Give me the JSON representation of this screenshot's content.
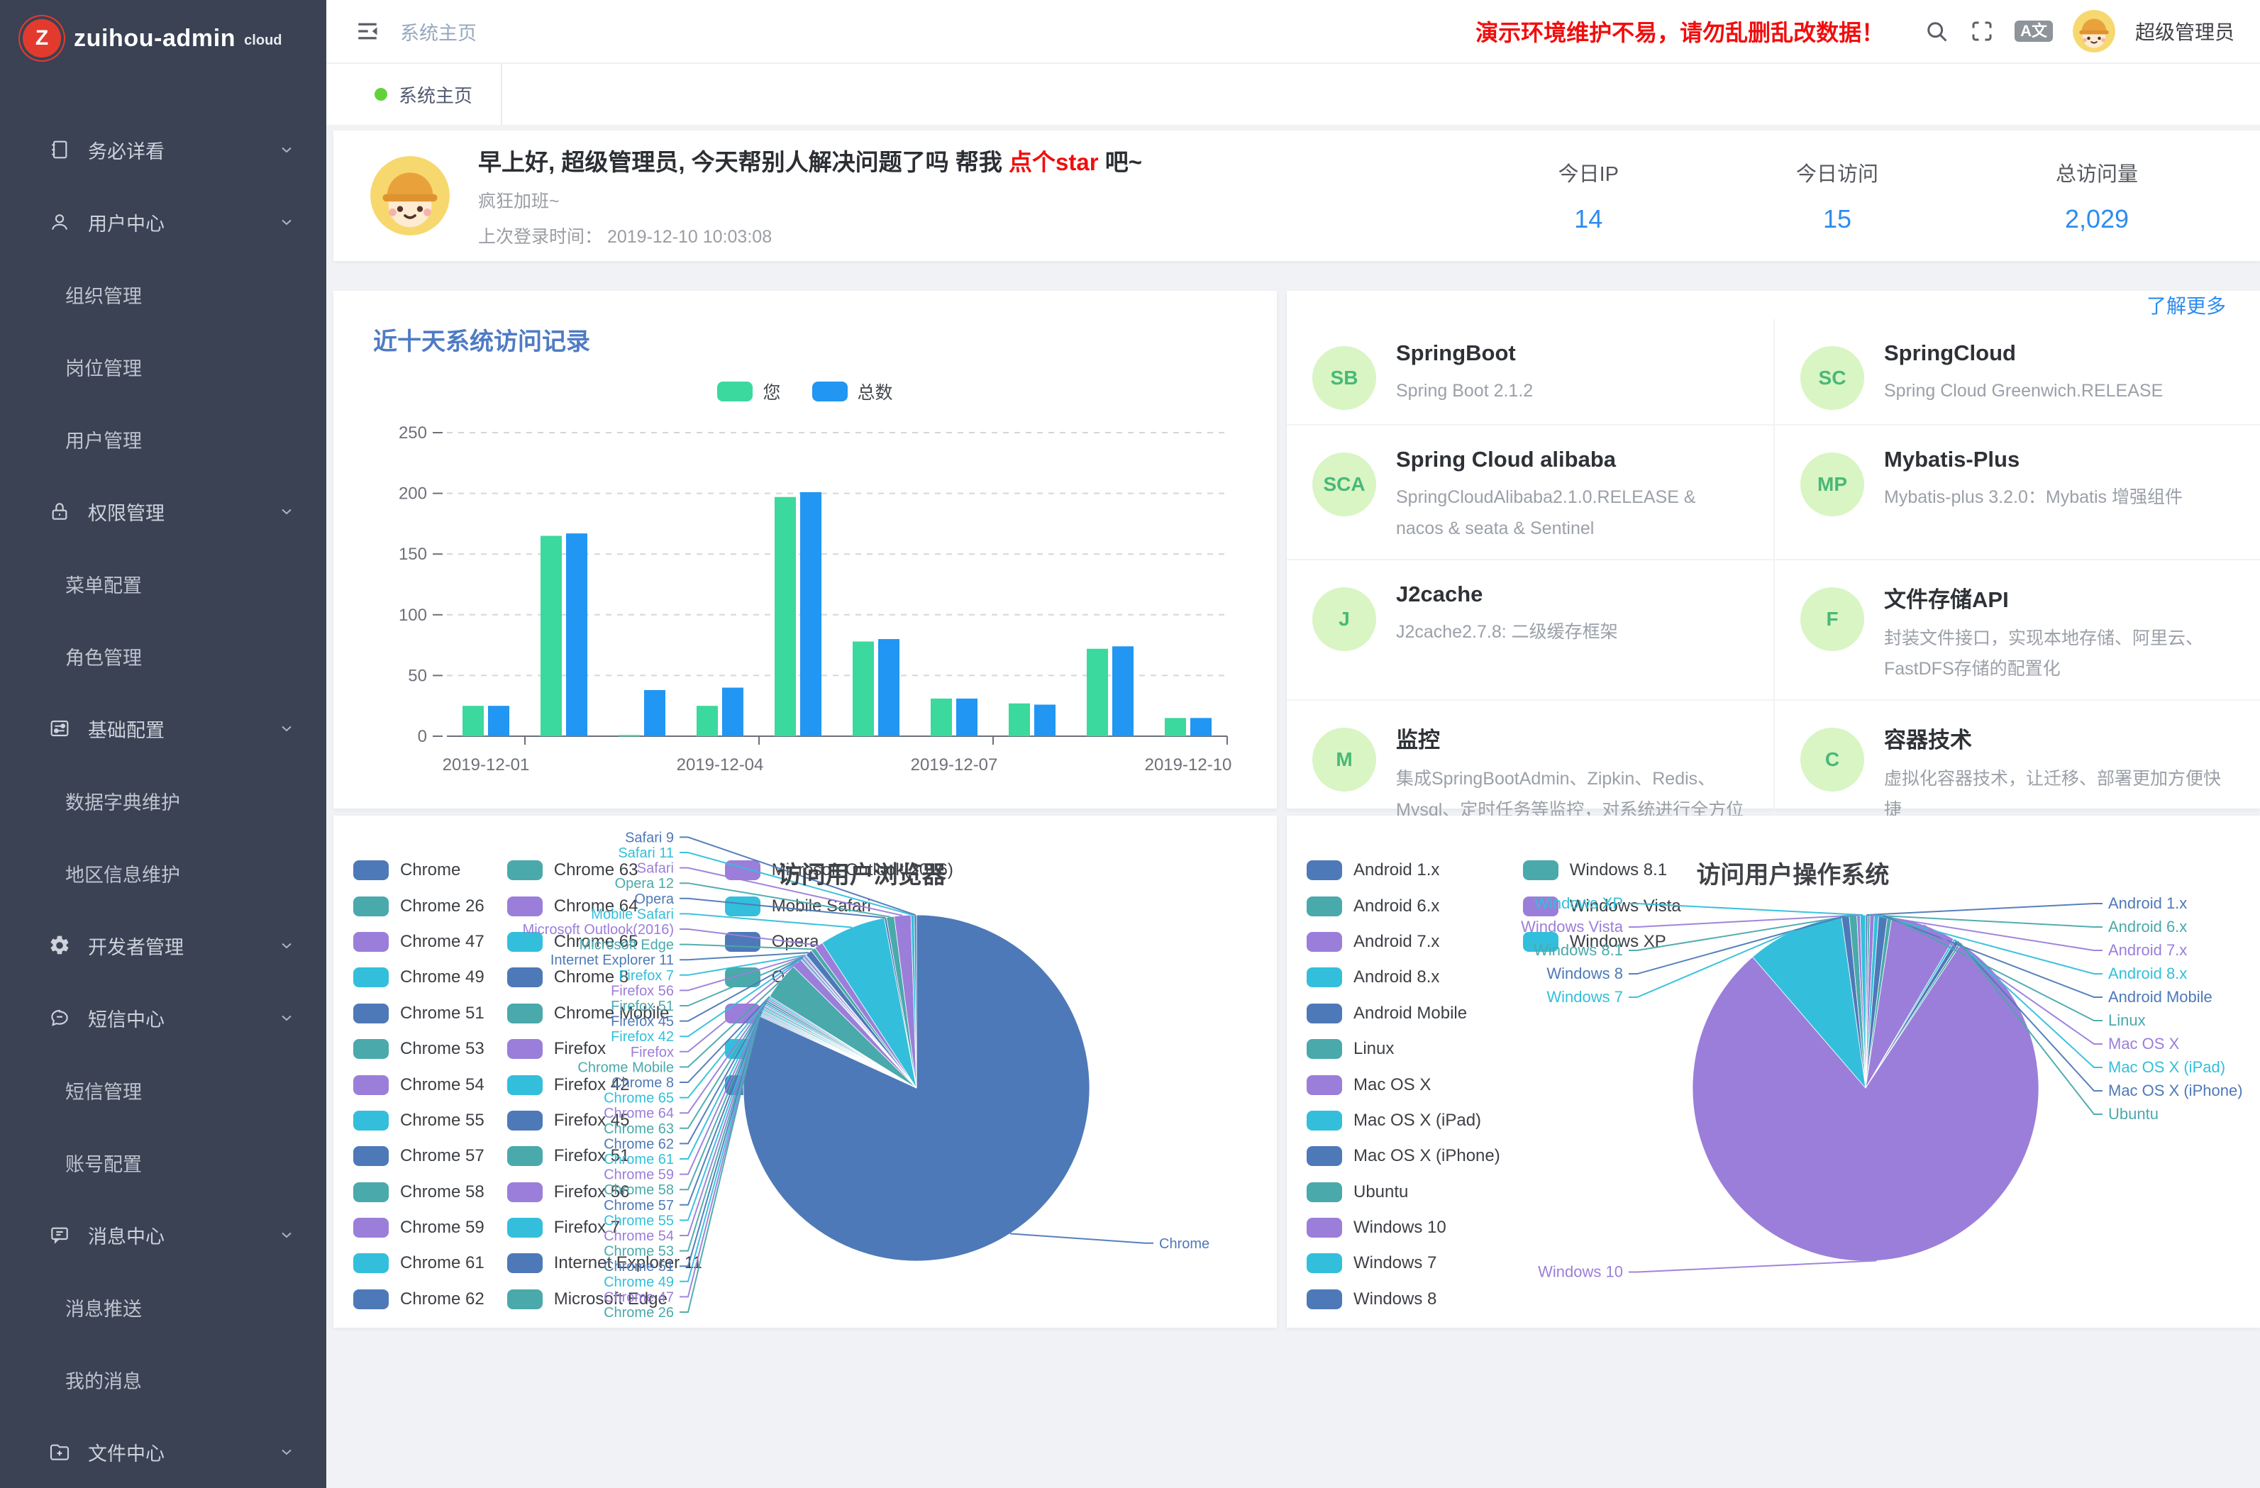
{
  "app": {
    "logo_text": "zuihou-admin",
    "logo_badge": "cloud",
    "logo_letter": "Z"
  },
  "header": {
    "breadcrumb": "系统主页",
    "warning": "演示环境维护不易，请勿乱删乱改数据！",
    "lang_icon": "A文",
    "username": "超级管理员"
  },
  "tabbar": {
    "active_tab": "系统主页"
  },
  "sidebar": {
    "items": [
      {
        "label": "务必详看",
        "icon": "book",
        "level": 1,
        "chevron": true
      },
      {
        "label": "用户中心",
        "icon": "user",
        "level": 1,
        "chevron": true
      },
      {
        "label": "组织管理",
        "level": 2
      },
      {
        "label": "岗位管理",
        "level": 2
      },
      {
        "label": "用户管理",
        "level": 2
      },
      {
        "label": "权限管理",
        "icon": "lock",
        "level": 1,
        "chevron": true
      },
      {
        "label": "菜单配置",
        "level": 2
      },
      {
        "label": "角色管理",
        "level": 2
      },
      {
        "label": "基础配置",
        "icon": "sliders",
        "level": 1,
        "chevron": true
      },
      {
        "label": "数据字典维护",
        "level": 2
      },
      {
        "label": "地区信息维护",
        "level": 2
      },
      {
        "label": "开发者管理",
        "icon": "gear",
        "level": 1,
        "chevron": true
      },
      {
        "label": "短信中心",
        "icon": "chat-round",
        "level": 1,
        "chevron": true
      },
      {
        "label": "短信管理",
        "level": 2
      },
      {
        "label": "账号配置",
        "level": 2
      },
      {
        "label": "消息中心",
        "icon": "chat-square",
        "level": 1,
        "chevron": true
      },
      {
        "label": "消息推送",
        "level": 2
      },
      {
        "label": "我的消息",
        "level": 2
      },
      {
        "label": "文件中心",
        "icon": "folder-plus",
        "level": 1,
        "chevron": true
      }
    ]
  },
  "greeting": {
    "title_pre": "早上好, 超级管理员, 今天帮别人解决问题了吗 帮我 ",
    "star_link": "点个star",
    "title_post": " 吧~",
    "subtitle": "疯狂加班~",
    "last_login_label": "上次登录时间：  ",
    "last_login_time": "2019-12-10 10:03:08"
  },
  "stats": [
    {
      "label": "今日IP",
      "value": "14"
    },
    {
      "label": "今日访问",
      "value": "15"
    },
    {
      "label": "总访问量",
      "value": "2,029"
    }
  ],
  "tech": {
    "more_link": "了解更多",
    "cards": [
      {
        "abbr": "SB",
        "title": "SpringBoot",
        "desc": "Spring Boot 2.1.2"
      },
      {
        "abbr": "SC",
        "title": "SpringCloud",
        "desc": "Spring Cloud Greenwich.RELEASE"
      },
      {
        "abbr": "SCA",
        "title": "Spring Cloud alibaba",
        "desc": "SpringCloudAlibaba2.1.0.RELEASE & nacos & seata & Sentinel"
      },
      {
        "abbr": "MP",
        "title": "Mybatis-Plus",
        "desc": "Mybatis-plus 3.2.0：Mybatis 增强组件"
      },
      {
        "abbr": "J",
        "title": "J2cache",
        "desc": "J2cache2.7.8: 二级缓存框架"
      },
      {
        "abbr": "F",
        "title": "文件存储API",
        "desc": "封装文件接口，实现本地存储、阿里云、FastDFS存储的配置化"
      },
      {
        "abbr": "M",
        "title": "监控",
        "desc": "集成SpringBootAdmin、Zipkin、Redis、Mysql、定时任务等监控，对系统进行全方位监控护航"
      },
      {
        "abbr": "C",
        "title": "容器技术",
        "desc": "虚拟化容器技术，让迁移、部署更加方便快捷"
      }
    ]
  },
  "chart_data": [
    {
      "type": "bar",
      "title": "近十天系统访问记录",
      "categories": [
        "2019-12-01",
        "2019-12-02",
        "2019-12-03",
        "2019-12-04",
        "2019-12-05",
        "2019-12-06",
        "2019-12-07",
        "2019-12-08",
        "2019-12-09",
        "2019-12-10"
      ],
      "shown_x_labels": [
        "2019-12-01",
        "2019-12-04",
        "2019-12-07",
        "2019-12-10"
      ],
      "series": [
        {
          "name": "您",
          "color": "#3bd99d",
          "values": [
            25,
            165,
            1,
            25,
            197,
            78,
            31,
            27,
            72,
            15
          ]
        },
        {
          "name": "总数",
          "color": "#2196f3",
          "values": [
            25,
            167,
            38,
            40,
            201,
            80,
            31,
            26,
            74,
            15
          ]
        }
      ],
      "xlabel": "",
      "ylabel": "",
      "ylim": [
        0,
        250
      ],
      "yticks": [
        0,
        50,
        100,
        150,
        200,
        250
      ],
      "grid": "dashed",
      "legend_position": "top"
    },
    {
      "type": "pie",
      "title": "访问用户浏览器",
      "palette": [
        "#4e79b8",
        "#4aa9ab",
        "#9b7eda",
        "#33bfdb"
      ],
      "items": [
        {
          "name": "Chrome",
          "value": 1590
        },
        {
          "name": "Chrome 26",
          "value": 2
        },
        {
          "name": "Chrome 47",
          "value": 2
        },
        {
          "name": "Chrome 49",
          "value": 2
        },
        {
          "name": "Chrome 51",
          "value": 2
        },
        {
          "name": "Chrome 53",
          "value": 2
        },
        {
          "name": "Chrome 54",
          "value": 2
        },
        {
          "name": "Chrome 55",
          "value": 3
        },
        {
          "name": "Chrome 57",
          "value": 2
        },
        {
          "name": "Chrome 58",
          "value": 3
        },
        {
          "name": "Chrome 59",
          "value": 2
        },
        {
          "name": "Chrome 61",
          "value": 3
        },
        {
          "name": "Chrome 62",
          "value": 3
        },
        {
          "name": "Chrome 63",
          "value": 4
        },
        {
          "name": "Chrome 64",
          "value": 3
        },
        {
          "name": "Chrome 65",
          "value": 3
        },
        {
          "name": "Chrome 8",
          "value": 2
        },
        {
          "name": "Chrome Mobile",
          "value": 68
        },
        {
          "name": "Firefox",
          "value": 18
        },
        {
          "name": "Firefox 42",
          "value": 2
        },
        {
          "name": "Firefox 45",
          "value": 3
        },
        {
          "name": "Firefox 51",
          "value": 2
        },
        {
          "name": "Firefox 56",
          "value": 4
        },
        {
          "name": "Firefox 7",
          "value": 2
        },
        {
          "name": "Internet Explorer 11",
          "value": 12
        },
        {
          "name": "Microsoft Edge",
          "value": 8
        },
        {
          "name": "Microsoft Outlook(2016)",
          "value": 16
        },
        {
          "name": "Mobile Safari",
          "value": 120
        },
        {
          "name": "Opera",
          "value": 4
        },
        {
          "name": "Opera 12",
          "value": 14
        },
        {
          "name": "Safari",
          "value": 30
        },
        {
          "name": "Safari 11",
          "value": 6
        },
        {
          "name": "Safari 9",
          "value": 4
        }
      ],
      "label_side_override": {
        "Chrome": "right"
      },
      "legend_position": "left",
      "values_estimated": true
    },
    {
      "type": "pie",
      "title": "访问用户操作系统",
      "palette": [
        "#4e79b8",
        "#4aa9ab",
        "#9b7eda",
        "#33bfdb"
      ],
      "items": [
        {
          "name": "Android 1.x",
          "value": 4
        },
        {
          "name": "Android 6.x",
          "value": 4
        },
        {
          "name": "Android 7.x",
          "value": 8
        },
        {
          "name": "Android 8.x",
          "value": 8
        },
        {
          "name": "Android Mobile",
          "value": 16
        },
        {
          "name": "Linux",
          "value": 8
        },
        {
          "name": "Mac OS X",
          "value": 120
        },
        {
          "name": "Mac OS X (iPad)",
          "value": 4
        },
        {
          "name": "Mac OS X (iPhone)",
          "value": 8
        },
        {
          "name": "Ubuntu",
          "value": 4
        },
        {
          "name": "Windows 10",
          "value": 1570
        },
        {
          "name": "Windows 7",
          "value": 180
        },
        {
          "name": "Windows 8",
          "value": 14
        },
        {
          "name": "Windows 8.1",
          "value": 14
        },
        {
          "name": "Windows Vista",
          "value": 6
        },
        {
          "name": "Windows XP",
          "value": 10
        }
      ],
      "label_side_override": {
        "Windows 10": "left"
      },
      "legend_position": "left",
      "values_estimated": true
    }
  ]
}
